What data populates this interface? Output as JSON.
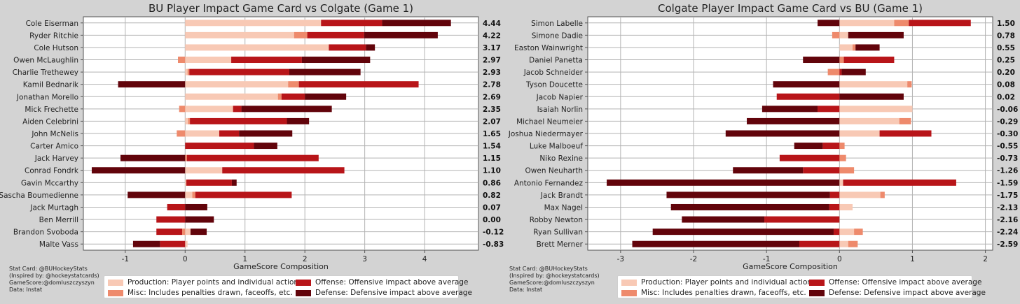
{
  "chart_data": [
    {
      "type": "bar",
      "stacked": "horizontal",
      "title": "BU Player Impact Game Card vs Colgate (Game 1)",
      "xlabel": "GameScore Composition",
      "xlim": [
        -1.7,
        4.9
      ],
      "xticks": [
        -1,
        0,
        1,
        2,
        3,
        4
      ],
      "players": [
        {
          "name": "Cole Eiserman",
          "total": "4.44",
          "prod": 2.27,
          "misc": 0,
          "off": 1.02,
          "def": 1.15
        },
        {
          "name": "Ryder Ritchie",
          "total": "4.22",
          "prod": 1.82,
          "misc": 0.22,
          "off": 0.95,
          "def": 1.23
        },
        {
          "name": "Cole Hutson",
          "total": "3.17",
          "prod": 2.4,
          "misc": 0,
          "off": 0.62,
          "def": 0.15
        },
        {
          "name": "Owen McLaughlin",
          "total": "2.97",
          "prod": 0.77,
          "misc": -0.12,
          "off": 1.18,
          "def": 1.14
        },
        {
          "name": "Charlie Trethewey",
          "total": "2.93",
          "prod": 0.04,
          "misc": 0.03,
          "off": 1.67,
          "def": 1.19
        },
        {
          "name": "Kamil Bednarik",
          "total": "2.78",
          "prod": 1.72,
          "misc": 0.18,
          "off": 2.0,
          "def": -1.12
        },
        {
          "name": "Jonathan Morello",
          "total": "2.69",
          "prod": 1.55,
          "misc": 0.06,
          "off": 0.39,
          "def": 0.69
        },
        {
          "name": "Mick Frechette",
          "total": "2.35",
          "prod": 0.8,
          "misc": -0.1,
          "off": 0.14,
          "def": 1.51
        },
        {
          "name": "Aiden Celebrini",
          "total": "2.07",
          "prod": 0.05,
          "misc": 0.03,
          "off": 1.62,
          "def": 0.37
        },
        {
          "name": "John McNelis",
          "total": "1.65",
          "prod": 0.57,
          "misc": -0.14,
          "off": 0.33,
          "def": 0.89
        },
        {
          "name": "Carter Amico",
          "total": "1.54",
          "prod": 0,
          "misc": 0,
          "off": 1.15,
          "def": 0.39
        },
        {
          "name": "Jack Harvey",
          "total": "1.15",
          "prod": 0,
          "misc": 0.03,
          "off": 2.2,
          "def": -1.08
        },
        {
          "name": "Conrad Fondrk",
          "total": "1.10",
          "prod": 0.62,
          "misc": 0,
          "off": 2.04,
          "def": -1.56
        },
        {
          "name": "Gavin Mccarthy",
          "total": "0.86",
          "prod": 0.02,
          "misc": 0,
          "off": 0.76,
          "def": 0.08
        },
        {
          "name": "Sascha Boumedienne",
          "total": "0.82",
          "prod": 0.12,
          "misc": 0.05,
          "off": 1.61,
          "def": -0.96
        },
        {
          "name": "Jack Murtagh",
          "total": "0.07",
          "prod": 0,
          "misc": 0,
          "off": -0.3,
          "def": 0.37
        },
        {
          "name": "Ben Merrill",
          "total": "0.00",
          "prod": 0,
          "misc": 0,
          "off": -0.48,
          "def": 0.48
        },
        {
          "name": "Brandon Svoboda",
          "total": "-0.12",
          "prod": 0.09,
          "misc": -0.05,
          "off": -0.43,
          "def": 0.27
        },
        {
          "name": "Malte Vass",
          "total": "-0.83",
          "prod": 0.04,
          "misc": 0,
          "off": -0.42,
          "def": -0.45
        }
      ]
    },
    {
      "type": "bar",
      "stacked": "horizontal",
      "title": "Colgate Player Impact Game Card vs BU (Game 1)",
      "xlabel": "GameScore Composition",
      "xlim": [
        -3.45,
        2.1
      ],
      "xticks": [
        -3,
        -2,
        -1,
        0,
        1,
        2
      ],
      "players": [
        {
          "name": "Simon Labelle",
          "total": "1.50",
          "prod": 0.75,
          "misc": 0.2,
          "off": 0.85,
          "def": -0.3
        },
        {
          "name": "Simone Dadie",
          "total": "0.78",
          "prod": 0.12,
          "misc": -0.1,
          "off": 0,
          "def": 0.76
        },
        {
          "name": "Easton Wainwright",
          "total": "0.55",
          "prod": 0.18,
          "misc": 0.04,
          "off": 0,
          "def": 0.33
        },
        {
          "name": "Daniel Panetta",
          "total": "0.25",
          "prod": 0,
          "misc": 0.06,
          "off": 0.69,
          "def": -0.5
        },
        {
          "name": "Jacob Schneider",
          "total": "0.20",
          "prod": 0,
          "misc": -0.16,
          "off": 0.03,
          "def": 0.33
        },
        {
          "name": "Tyson Doucette",
          "total": "0.08",
          "prod": 0.93,
          "misc": 0.06,
          "off": 0,
          "def": -0.91
        },
        {
          "name": "Jacob Napier",
          "total": "0.02",
          "prod": 0,
          "misc": 0,
          "off": -0.86,
          "def": 0.88
        },
        {
          "name": "Isaiah Norlin",
          "total": "-0.06",
          "prod": 1.0,
          "misc": 0,
          "off": -0.3,
          "def": -0.76
        },
        {
          "name": "Michael Neumeier",
          "total": "-0.29",
          "prod": 0.82,
          "misc": 0.16,
          "off": 0,
          "def": -1.27
        },
        {
          "name": "Joshua Niedermayer",
          "total": "-0.30",
          "prod": 0.55,
          "misc": 0,
          "off": 0.71,
          "def": -1.56
        },
        {
          "name": "Luke Malboeuf",
          "total": "-0.55",
          "prod": 0,
          "misc": 0.07,
          "off": -0.23,
          "def": -0.39
        },
        {
          "name": "Niko Rexine",
          "total": "-0.73",
          "prod": 0,
          "misc": 0.09,
          "off": -0.82,
          "def": 0
        },
        {
          "name": "Owen Neuharth",
          "total": "-1.26",
          "prod": 0,
          "misc": 0.2,
          "off": -0.5,
          "def": -0.96
        },
        {
          "name": "Antonio Fernandez",
          "total": "-1.59",
          "prod": 0.05,
          "misc": 0,
          "off": 1.55,
          "def": -3.19
        },
        {
          "name": "Jack Brandt",
          "total": "-1.75",
          "prod": 0.56,
          "misc": 0.06,
          "off": -0.13,
          "def": -2.24
        },
        {
          "name": "Max Nagel",
          "total": "-2.13",
          "prod": 0.18,
          "misc": 0,
          "off": -0.14,
          "def": -2.17
        },
        {
          "name": "Robby Newton",
          "total": "-2.16",
          "prod": 0,
          "misc": 0,
          "off": -1.03,
          "def": -1.13
        },
        {
          "name": "Ryan Sullivan",
          "total": "-2.24",
          "prod": 0.2,
          "misc": 0.12,
          "off": -0.08,
          "def": -2.48
        },
        {
          "name": "Brett Merner",
          "total": "-2.59",
          "prod": 0.12,
          "misc": 0.13,
          "off": -0.55,
          "def": -2.29
        }
      ]
    }
  ],
  "credits": {
    "lines": [
      "Stat Card: @BUHockeyStats",
      "(Inspired by: @hockeystatcards)",
      "GameScore:@domluszczyszyn",
      "Data: Instat"
    ]
  },
  "legend": {
    "prod": "Production: Player points and individual actions",
    "misc": "Misc: Includes penalties drawn, faceoffs, etc.",
    "off": "Offense: Offensive impact above average",
    "def": "Defense: Defensive impact above average"
  },
  "colors": {
    "prod": "#f8c9b5",
    "misc": "#ee8a6c",
    "off": "#b81519",
    "def": "#62040b",
    "background": "#d3d3d3",
    "plot": "#ffffff",
    "grid": "#b3b3b3"
  }
}
